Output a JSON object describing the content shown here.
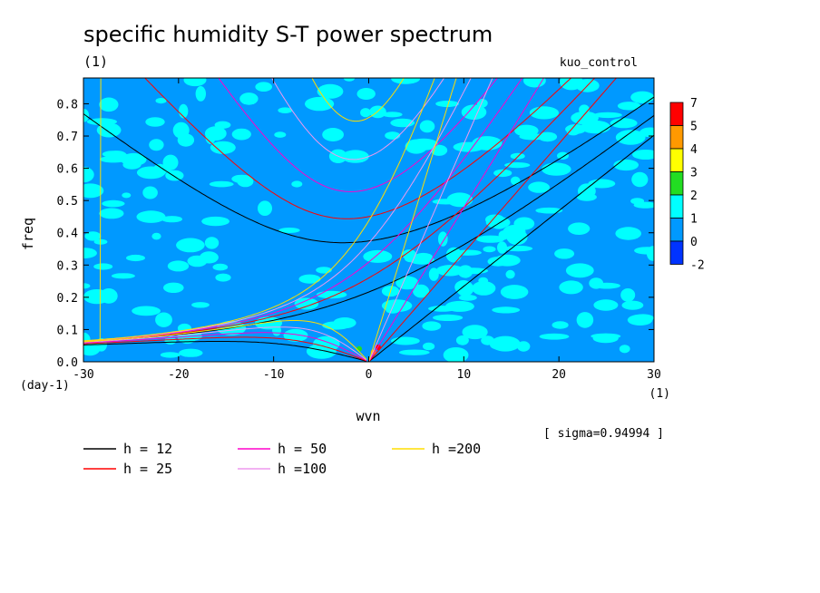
{
  "chart_data": {
    "type": "heatmap",
    "title": "specific humidity S-T power spectrum",
    "units_label": "(1)",
    "experiment": "kuo_control",
    "xlabel": "wvn",
    "ylabel": "freq",
    "x_units": "(1)",
    "y_units": "(day-1)",
    "xlim": [
      -30,
      30
    ],
    "ylim": [
      0,
      0.88
    ],
    "x_ticks": [
      -30,
      -20,
      -10,
      0,
      10,
      20,
      30
    ],
    "y_ticks": [
      0.0,
      0.1,
      0.2,
      0.3,
      0.4,
      0.5,
      0.6,
      0.7,
      0.8
    ],
    "x_tick_labels": [
      "-30",
      "-20",
      "-10",
      "0",
      "10",
      "20",
      "30"
    ],
    "y_tick_labels": [
      "0.0",
      "0.1",
      "0.2",
      "0.3",
      "0.4",
      "0.5",
      "0.6",
      "0.7",
      "0.8"
    ],
    "sigma_note": "[ sigma=0.94994 ]",
    "colorbar": {
      "levels": [
        "7",
        "5",
        "4",
        "3",
        "2",
        "1",
        "0",
        "-2"
      ],
      "colors": [
        "#ff0000",
        "#ff9900",
        "#ffff00",
        "#22dd22",
        "#00ffff",
        "#0099ff",
        "#0033ff"
      ]
    },
    "field": {
      "background_color": "#0099ff",
      "patch_color": "#00ffff",
      "hot_spots": [
        {
          "x": 1.0,
          "y": 0.045,
          "color": "#ff0000"
        },
        {
          "x": 0.5,
          "y": 0.03,
          "color": "#ff9900"
        },
        {
          "x": -1.0,
          "y": 0.04,
          "color": "#22dd22"
        }
      ]
    },
    "series": [
      {
        "name": "h = 12",
        "h": 12,
        "color": "#000000"
      },
      {
        "name": "h = 25",
        "h": 25,
        "color": "#ff0000"
      },
      {
        "name": "h = 50",
        "h": 50,
        "color": "#ff00cc"
      },
      {
        "name": "h =100",
        "h": 100,
        "color": "#ee99ee"
      },
      {
        "name": "h =200",
        "h": 200,
        "color": "#ffdd00"
      }
    ]
  }
}
